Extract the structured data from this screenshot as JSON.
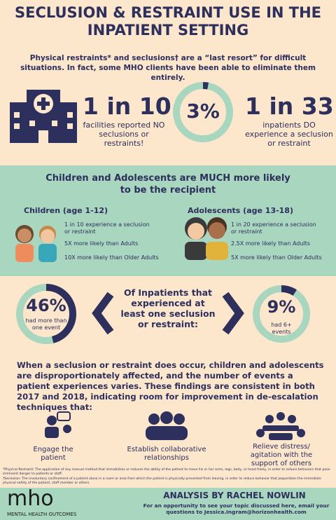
{
  "header": {
    "title": "SECLUSION & RESTRAINT USE IN THE INPATIENT SETTING",
    "intro": "Physical restraints* and seclusions† are a “last resort” for difficult situations. In fact, some MHO clients have been able to eliminate them entirely."
  },
  "stats": {
    "facilities": {
      "big": "1 in 10",
      "text": "facilities reported NO seclusions or restraints!"
    },
    "percent": {
      "value": 3,
      "label": "3%"
    },
    "inpatients": {
      "big": "1 in 33",
      "text": "inpatients DO experience a seclusion or restraint"
    }
  },
  "youth": {
    "heading": "Children and Adolescents are MUCH more likely to be the recipient",
    "groups": [
      {
        "title": "Children (age 1-12)",
        "items": [
          "1 in 10 experience a seclusion or restraint",
          "5X more likely than Adults",
          "10X more likely than Older Adults"
        ]
      },
      {
        "title": "Adolescents (age 13-18)",
        "items": [
          "1 in 20 experience a seclusion or restraint",
          "2.5X more likely than Adults",
          "5X more likely than Older Adults"
        ]
      }
    ]
  },
  "events": {
    "center": "Of Inpatients that experienced at least one seclusion or restraint:",
    "left": {
      "value": 46,
      "label": "46%",
      "text": "had more than one event"
    },
    "right": {
      "value": 9,
      "label": "9%",
      "text": "had 6+ events"
    }
  },
  "paragraph": "When a seclusion or restraint does occur, children and adolescents are disproportionately affected, and the number of events a patient experiences varies. These findings are consistent in both 2017 and 2018, indicating room for improvement in de-escalation techniques that:",
  "techniques": [
    "Engage the patient",
    "Establish collaborative relationships",
    "Relieve distress/ agitation with the support of others"
  ],
  "footnotes": [
    "*Physical Restraint: The application of any manual method that immobilizes or reduces the ability of the patient to move his or her arms, legs, body, or head freely, in order to reduce behaviors that pose imminent danger to patients or staff.",
    "†Seclusion: The involuntary confinement of a patient alone in a room or area from which the patient is physically prevented from leaving, in order to reduce behavior that jeopardizes the immediate physical safety of the patient, staff member or others."
  ],
  "footer": {
    "logo": "mho",
    "logo_sub": "MENTAL HEALTH OUTCOMES",
    "author": "ANALYSIS BY RACHEL NOWLIN",
    "contact": "For an opportunity to see your topic discussed here, email your questions to Jessica.Ingram@horizonhealth.com"
  }
}
